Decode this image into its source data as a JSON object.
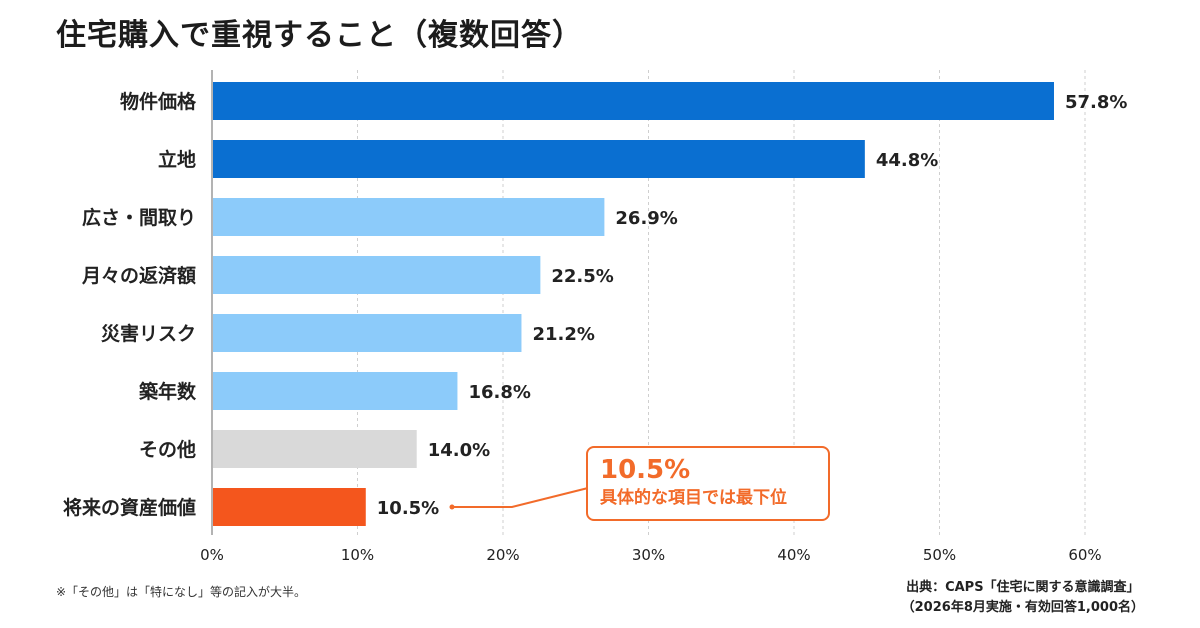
{
  "title": "住宅購入で重視すること（複数回答）",
  "chart_data": {
    "type": "bar",
    "orientation": "horizontal",
    "categories": [
      "物件価格",
      "立地",
      "広さ・間取り",
      "月々の返済額",
      "災害リスク",
      "築年数",
      "その他",
      "将来の資産価値"
    ],
    "values": [
      57.8,
      44.8,
      26.9,
      22.5,
      21.2,
      16.8,
      14.0,
      10.5
    ],
    "value_labels": [
      "57.8%",
      "44.8%",
      "26.9%",
      "22.5%",
      "21.2%",
      "16.8%",
      "14.0%",
      "10.5%"
    ],
    "bar_colors": [
      "#0a6fd1",
      "#0a6fd1",
      "#8ccbfa",
      "#8ccbfa",
      "#8ccbfa",
      "#8ccbfa",
      "#d9d9d9",
      "#f4561d"
    ],
    "xlim": [
      0,
      60
    ],
    "xticks": [
      0,
      10,
      20,
      30,
      40,
      50,
      60
    ],
    "xtick_labels": [
      "0%",
      "10%",
      "20%",
      "30%",
      "40%",
      "50%",
      "60%"
    ],
    "grid": "vertical dashed",
    "xlabel": "",
    "ylabel": ""
  },
  "callout": {
    "value": "10.5%",
    "text": "具体的な項目では最下位",
    "color": "#f26b2a"
  },
  "footnote": "※「その他」は「特になし」等の記入が大半。",
  "source": {
    "line1": "出典：CAPS「住宅に関する意識調査」",
    "line2": "（2026年8月実施・有効回答1,000名）"
  }
}
